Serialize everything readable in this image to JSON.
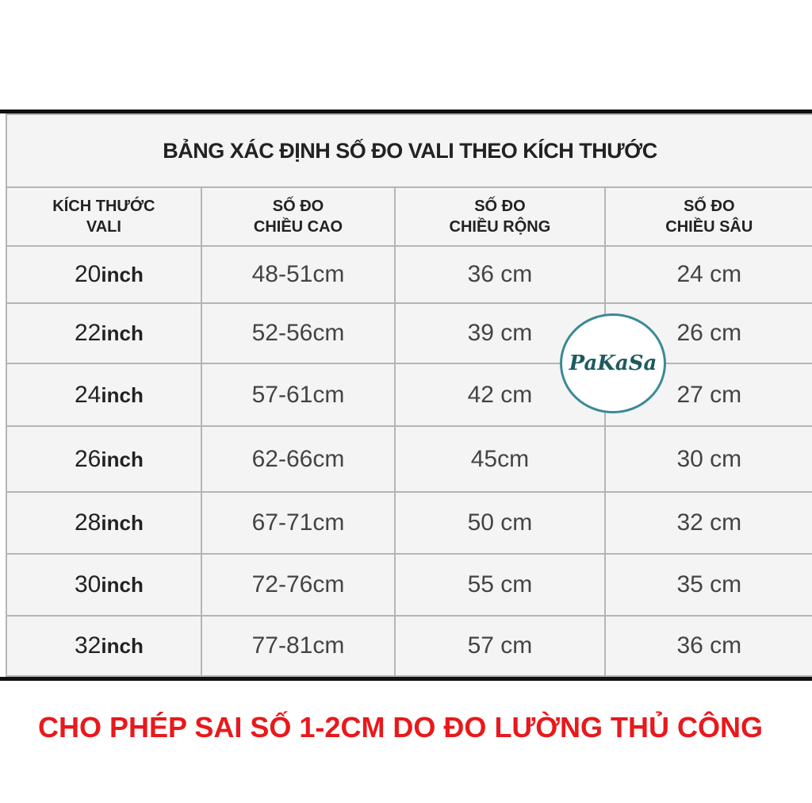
{
  "table": {
    "title": "BẢNG XÁC ĐỊNH SỐ ĐO VALI THEO KÍCH THƯỚC",
    "headers": [
      [
        "KÍCH THƯỚC",
        "VALI"
      ],
      [
        "SỐ ĐO",
        "CHIỀU CAO"
      ],
      [
        "SỐ ĐO",
        "CHIỀU RỘNG"
      ],
      [
        "SỐ ĐO",
        "CHIỀU SÂU"
      ]
    ],
    "unit": "inch",
    "rows": [
      {
        "size": "20",
        "height": "48-51cm",
        "width": "36 cm",
        "depth": "24 cm"
      },
      {
        "size": "22",
        "height": "52-56cm",
        "width": "39 cm",
        "depth": "26 cm"
      },
      {
        "size": "24",
        "height": "57-61cm",
        "width": "42 cm",
        "depth": "27 cm"
      },
      {
        "size": "26",
        "height": "62-66cm",
        "width": "45cm",
        "depth": "30 cm"
      },
      {
        "size": "28",
        "height": "67-71cm",
        "width": "50 cm",
        "depth": "32 cm"
      },
      {
        "size": "30",
        "height": "72-76cm",
        "width": "55 cm",
        "depth": "35 cm"
      },
      {
        "size": "32",
        "height": "77-81cm",
        "width": "57 cm",
        "depth": "36 cm"
      }
    ]
  },
  "logo": "PaKaSa",
  "note": "CHO PHÉP SAI SỐ 1-2CM DO ĐO LƯỜNG THỦ CÔNG",
  "colors": {
    "note": "#e8191c",
    "logo": "#1d5b5e",
    "border": "#b5b5b5"
  }
}
